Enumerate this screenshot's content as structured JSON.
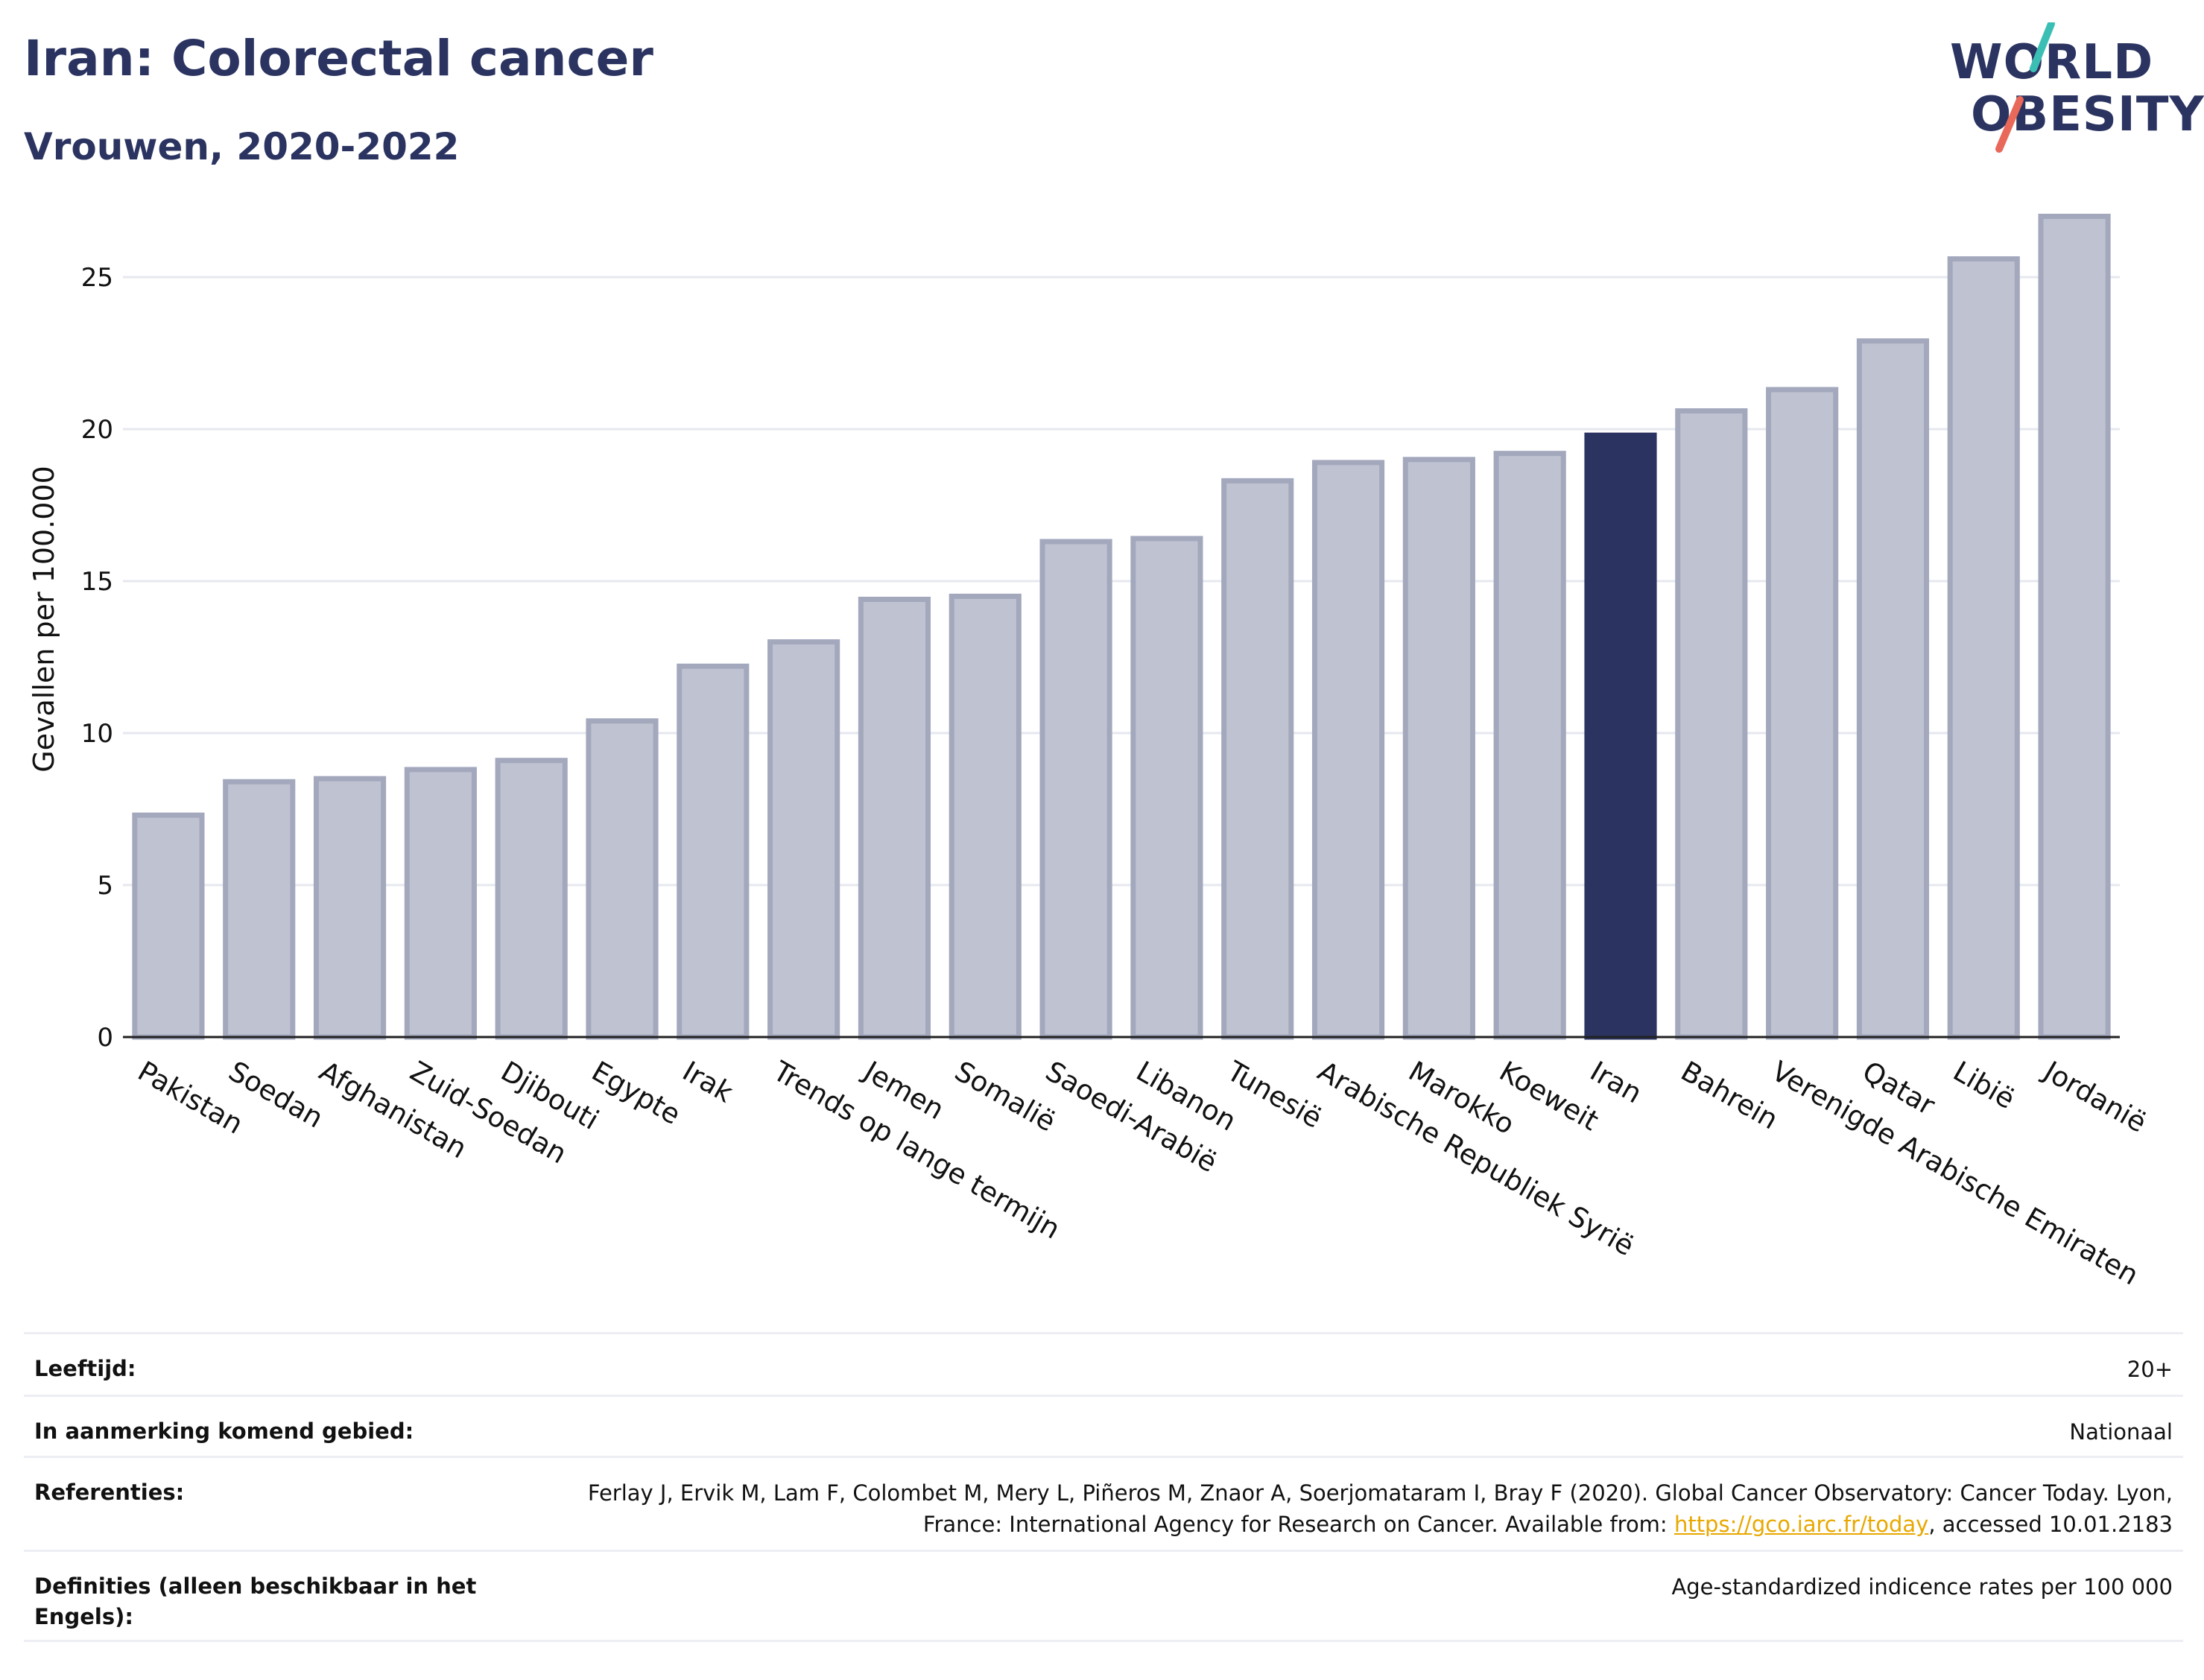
{
  "title": "Iran: Colorectal cancer",
  "subtitle": "Vrouwen, 2020-2022",
  "logo": {
    "line1": "WORLD",
    "line2": "OBESITY",
    "icon": "world-obesity-slash-logo"
  },
  "colors": {
    "bar": "#bfc3d1",
    "bar_border": "#a3a8bd",
    "highlight": "#2b3461",
    "text_dark": "#2b3461",
    "link": "#e8a800"
  },
  "chart_data": {
    "type": "bar",
    "ylabel": "Gevallen per 100.000",
    "xlabel": "",
    "ylim": [
      0,
      27.5
    ],
    "yticks": [
      0,
      5,
      10,
      15,
      20,
      25
    ],
    "grid": true,
    "highlight": "Iran",
    "categories": [
      "Pakistan",
      "Soedan",
      "Afghanistan",
      "Zuid-Soedan",
      "Djibouti",
      "Egypte",
      "Irak",
      "Trends op lange termijn",
      "Jemen",
      "Somalië",
      "Saoedi-Arabië",
      "Libanon",
      "Tunesië",
      "Arabische Republiek Syrië",
      "Marokko",
      "Koeweit",
      "Iran",
      "Bahrein",
      "Verenigde Arabische Emiraten",
      "Qatar",
      "Libië",
      "Jordanië"
    ],
    "values": [
      7.3,
      8.4,
      8.5,
      8.8,
      9.1,
      10.4,
      12.2,
      13.0,
      14.4,
      14.5,
      16.3,
      16.4,
      18.3,
      18.9,
      19.0,
      19.2,
      19.8,
      20.6,
      21.3,
      22.9,
      25.6,
      27.0
    ]
  },
  "meta": {
    "age_label": "Leeftijd:",
    "age_value": "20+",
    "area_label": "In aanmerking komend gebied:",
    "area_value": "Nationaal",
    "ref_label": "Referenties:",
    "ref_text_1": "Ferlay J, Ervik M, Lam F, Colombet M, Mery L, Piñeros M, Znaor A, Soerjomataram I, Bray F (2020). Global Cancer Observatory: Cancer Today. Lyon, France: International Agency for Research on Cancer. Available from: ",
    "ref_link": "https://gco.iarc.fr/today",
    "ref_text_2": ", accessed 10.01.2183",
    "def_label": "Definities (alleen beschikbaar in het Engels):",
    "def_value": "Age-standardized indicence rates per 100 000"
  }
}
